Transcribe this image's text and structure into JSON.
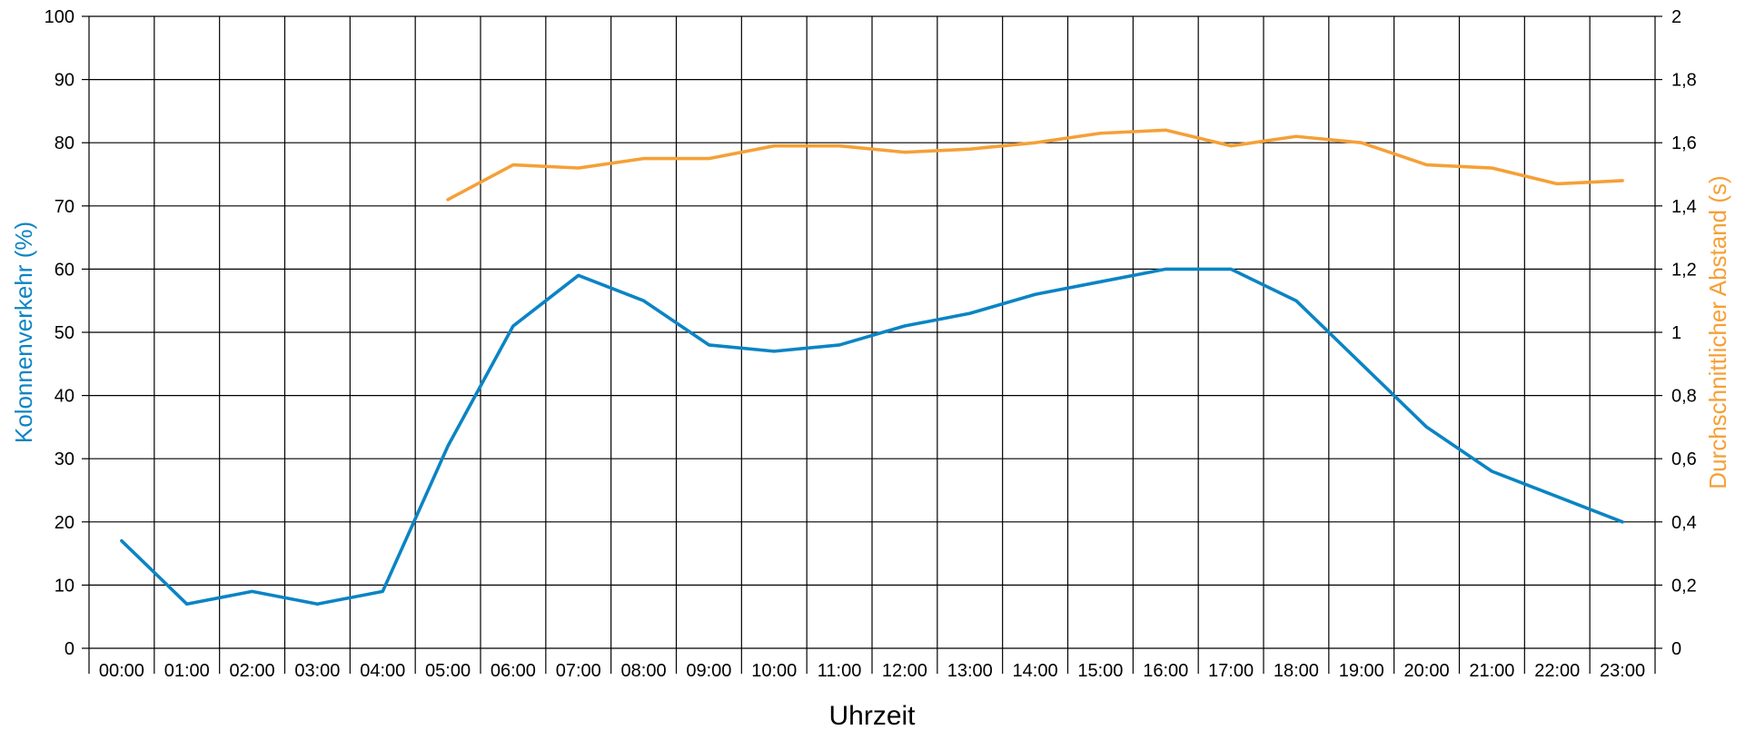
{
  "chart_data": {
    "type": "line",
    "xlabel": "Uhrzeit",
    "categories": [
      "00:00",
      "01:00",
      "02:00",
      "03:00",
      "04:00",
      "05:00",
      "06:00",
      "07:00",
      "08:00",
      "09:00",
      "10:00",
      "11:00",
      "12:00",
      "13:00",
      "14:00",
      "15:00",
      "16:00",
      "17:00",
      "18:00",
      "19:00",
      "20:00",
      "21:00",
      "22:00",
      "23:00"
    ],
    "y_left": {
      "label": "Kolonnenverkehr (%)",
      "range": [
        0,
        100
      ],
      "ticks": [
        "0",
        "10",
        "20",
        "30",
        "40",
        "50",
        "60",
        "70",
        "80",
        "90",
        "100"
      ],
      "color": "#0b84c4"
    },
    "y_right": {
      "label": "Durchschnittlicher Abstand (s)",
      "range": [
        0,
        2
      ],
      "ticks": [
        "0",
        "0,2",
        "0,4",
        "0,6",
        "0,8",
        "1",
        "1,2",
        "1,4",
        "1,6",
        "1,8",
        "2"
      ],
      "color": "#f5a037"
    },
    "series": [
      {
        "axis": "left",
        "color": "#0b84c4",
        "values": [
          17,
          7,
          9,
          7,
          9,
          32,
          51,
          59,
          55,
          48,
          47,
          48,
          51,
          53,
          56,
          58,
          60,
          60,
          55,
          45,
          35,
          28,
          24,
          20
        ]
      },
      {
        "axis": "right",
        "color": "#f5a037",
        "values": [
          null,
          null,
          null,
          null,
          null,
          1.42,
          1.53,
          1.52,
          1.55,
          1.55,
          1.59,
          1.59,
          1.57,
          1.58,
          1.6,
          1.63,
          1.64,
          1.59,
          1.62,
          1.6,
          1.53,
          1.52,
          1.47,
          1.48
        ]
      }
    ],
    "grid": true,
    "legend": "none"
  }
}
